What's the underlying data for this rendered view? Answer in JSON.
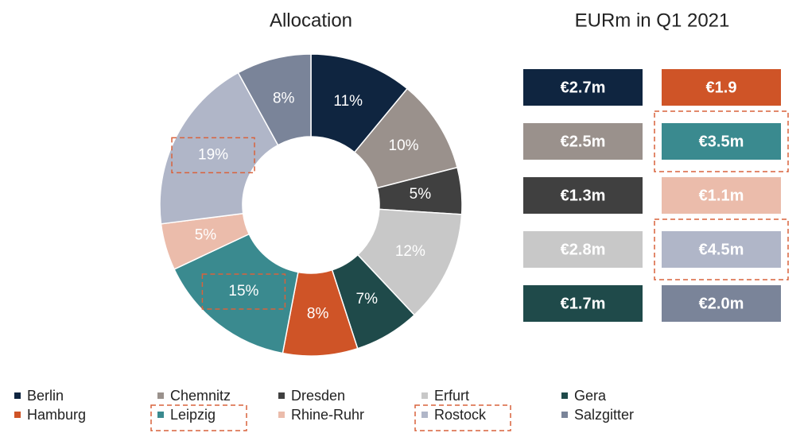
{
  "chart_data": [
    {
      "type": "pie",
      "title": "Allocation",
      "categories": [
        "Berlin",
        "Chemnitz",
        "Dresden",
        "Erfurt",
        "Gera",
        "Hamburg",
        "Leipzig",
        "Rhine-Ruhr",
        "Rostock",
        "Salzgitter"
      ],
      "values": [
        11,
        10,
        5,
        12,
        7,
        8,
        15,
        5,
        19,
        8
      ],
      "value_labels": [
        "11%",
        "10%",
        "5%",
        "12%",
        "7%",
        "8%",
        "15%",
        "5%",
        "19%",
        "8%"
      ],
      "colors": [
        "#0f2540",
        "#9a918c",
        "#404040",
        "#c8c8c8",
        "#1f4a4a",
        "#cf5427",
        "#3a8a8f",
        "#ebbcab",
        "#b0b6c8",
        "#7a8499"
      ],
      "donut": true,
      "highlight": [
        6,
        8
      ]
    },
    {
      "type": "tiles",
      "title": "EURm in Q1 2021",
      "categories": [
        "Berlin",
        "Chemnitz",
        "Dresden",
        "Erfurt",
        "Gera",
        "Hamburg",
        "Leipzig",
        "Rhine-Ruhr",
        "Rostock",
        "Salzgitter"
      ],
      "values": [
        2.7,
        2.5,
        1.3,
        2.8,
        1.7,
        1.9,
        3.5,
        1.1,
        4.5,
        2.0
      ],
      "value_labels": [
        "€2.7m",
        "€2.5m",
        "€1.3m",
        "€2.8m",
        "€1.7m",
        "€1.9",
        "€3.5m",
        "€1.1m",
        "€4.5m",
        "€2.0m"
      ],
      "highlight": [
        6,
        8
      ]
    }
  ]
}
